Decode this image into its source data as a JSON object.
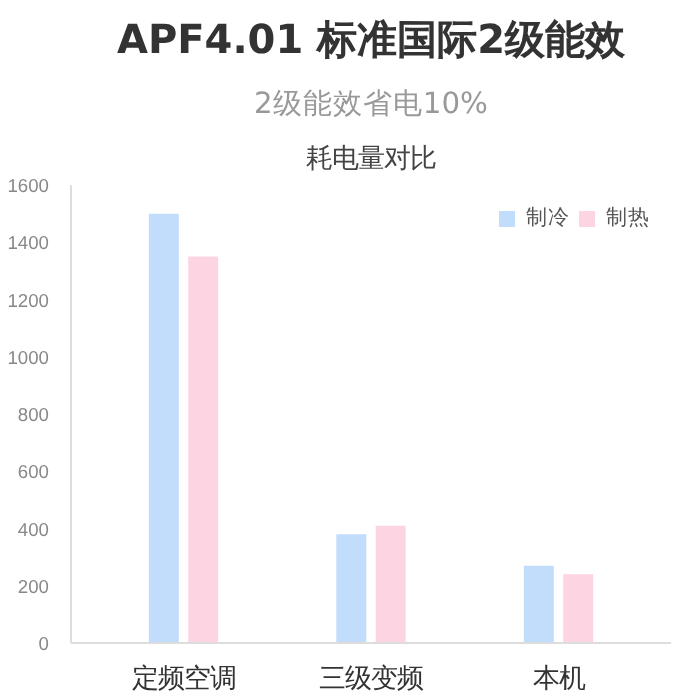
{
  "chart_data": {
    "type": "bar",
    "title": "APF4.01 标准国际2级能效",
    "subtitle": "2级能效省电10%",
    "annotations": [
      "耗电量对比"
    ],
    "categories": [
      "定频空调",
      "三级变频",
      "本机"
    ],
    "series": [
      {
        "name": "制冷",
        "color": "#c2dcfb",
        "values": [
          1500,
          380,
          270
        ]
      },
      {
        "name": "制热",
        "color": "#fdd5e2",
        "values": [
          1350,
          410,
          240
        ]
      }
    ],
    "ylim": [
      0,
      1600
    ],
    "yticks": [
      0,
      200,
      400,
      600,
      800,
      1000,
      1200,
      1400,
      1600
    ],
    "grid": false,
    "legend": "top right"
  }
}
